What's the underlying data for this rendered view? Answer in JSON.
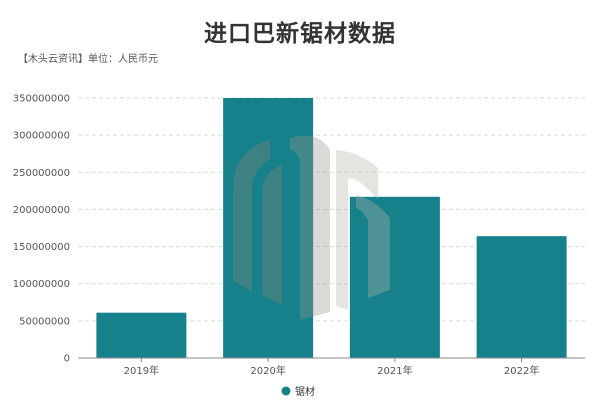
{
  "header": {
    "title": "进口巴新锯材数据",
    "source_note": "【木头云资讯】单位：人民币元"
  },
  "colors": {
    "bar": "#16818a",
    "grid": "#d9d9d9",
    "axis": "#888888",
    "watermark": "#b9b4ac"
  },
  "watermark_icon": "wood-logo-icon",
  "chart_data": {
    "type": "bar",
    "title": "进口巴新锯材数据",
    "categories": [
      "2019年",
      "2020年",
      "2021年",
      "2022年"
    ],
    "series": [
      {
        "name": "锯材",
        "values": [
          61000000,
          350000000,
          217000000,
          164000000
        ]
      }
    ],
    "yticks": [
      "0",
      "50000000",
      "100000000",
      "150000000",
      "200000000",
      "250000000",
      "300000000",
      "350000000"
    ],
    "ylim": [
      0,
      350000000
    ],
    "xlabel": "",
    "ylabel": "",
    "grid": true,
    "legend_position": "bottom-center"
  }
}
